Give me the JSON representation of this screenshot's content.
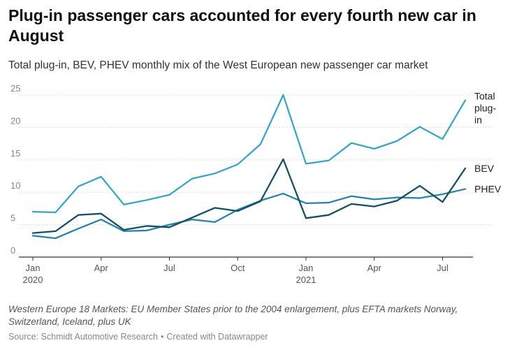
{
  "title": "Plug-in passenger cars accounted for every fourth new car in August",
  "subtitle": "Total plug-in, BEV, PHEV monthly mix of the West European new passenger car market",
  "notes": "Western Europe 18 Markets: EU Member States prior to the 2004 enlargement, plus EFTA markets Norway, Switzerland, Iceland, plus UK",
  "source": "Source: Schmidt Automotive Research",
  "credit": "Created with Datawrapper",
  "colors": {
    "total": "#3aa6c4",
    "bev": "#174f67",
    "phev": "#2a84a6",
    "grid": "#d6d6d6",
    "axis": "#333333",
    "tick_text": "#888888"
  },
  "chart_data": {
    "type": "line",
    "title": "Plug-in passenger cars accounted for every fourth new car in August",
    "subtitle": "Total plug-in, BEV, PHEV monthly mix of the West European new passenger car market",
    "xlabel": "",
    "ylabel": "",
    "ylim": [
      0,
      25
    ],
    "yticks": [
      "0",
      "5",
      "10",
      "15",
      "20",
      "25"
    ],
    "grid": true,
    "x": [
      "Jan 2020",
      "Feb 2020",
      "Mar 2020",
      "Apr 2020",
      "May 2020",
      "Jun 2020",
      "Jul 2020",
      "Aug 2020",
      "Sep 2020",
      "Oct 2020",
      "Nov 2020",
      "Dec 2020",
      "Jan 2021",
      "Feb 2021",
      "Mar 2021",
      "Apr 2021",
      "May 2021",
      "Jun 2021",
      "Jul 2021",
      "Aug 2021"
    ],
    "xticks": [
      {
        "index": 0,
        "label": "Jan",
        "year": "2020"
      },
      {
        "index": 3,
        "label": "Apr",
        "year": ""
      },
      {
        "index": 6,
        "label": "Jul",
        "year": ""
      },
      {
        "index": 9,
        "label": "Oct",
        "year": ""
      },
      {
        "index": 12,
        "label": "Jan",
        "year": "2021"
      },
      {
        "index": 15,
        "label": "Apr",
        "year": ""
      },
      {
        "index": 18,
        "label": "Jul",
        "year": ""
      }
    ],
    "series": [
      {
        "name": "Total plug-in",
        "label_lines": [
          "Total",
          "plug-",
          "in"
        ],
        "color": "#3aa6c4",
        "values": [
          7.0,
          6.9,
          10.9,
          12.4,
          8.1,
          8.8,
          9.6,
          12.1,
          12.9,
          14.3,
          17.4,
          25.0,
          14.4,
          14.9,
          17.6,
          16.7,
          17.9,
          20.1,
          18.2,
          24.2
        ]
      },
      {
        "name": "BEV",
        "label_lines": [
          "BEV"
        ],
        "color": "#174f67",
        "values": [
          3.7,
          4.0,
          6.5,
          6.7,
          4.2,
          4.8,
          4.6,
          6.1,
          7.6,
          7.1,
          8.6,
          15.1,
          6.0,
          6.5,
          8.2,
          7.8,
          8.7,
          11.0,
          8.5,
          13.7
        ]
      },
      {
        "name": "PHEV",
        "label_lines": [
          "PHEV"
        ],
        "color": "#2a84a6",
        "values": [
          3.3,
          2.9,
          4.4,
          5.8,
          4.0,
          4.1,
          5.0,
          5.8,
          5.4,
          7.3,
          8.7,
          9.8,
          8.3,
          8.4,
          9.4,
          8.9,
          9.2,
          9.1,
          9.7,
          10.5
        ]
      }
    ]
  }
}
